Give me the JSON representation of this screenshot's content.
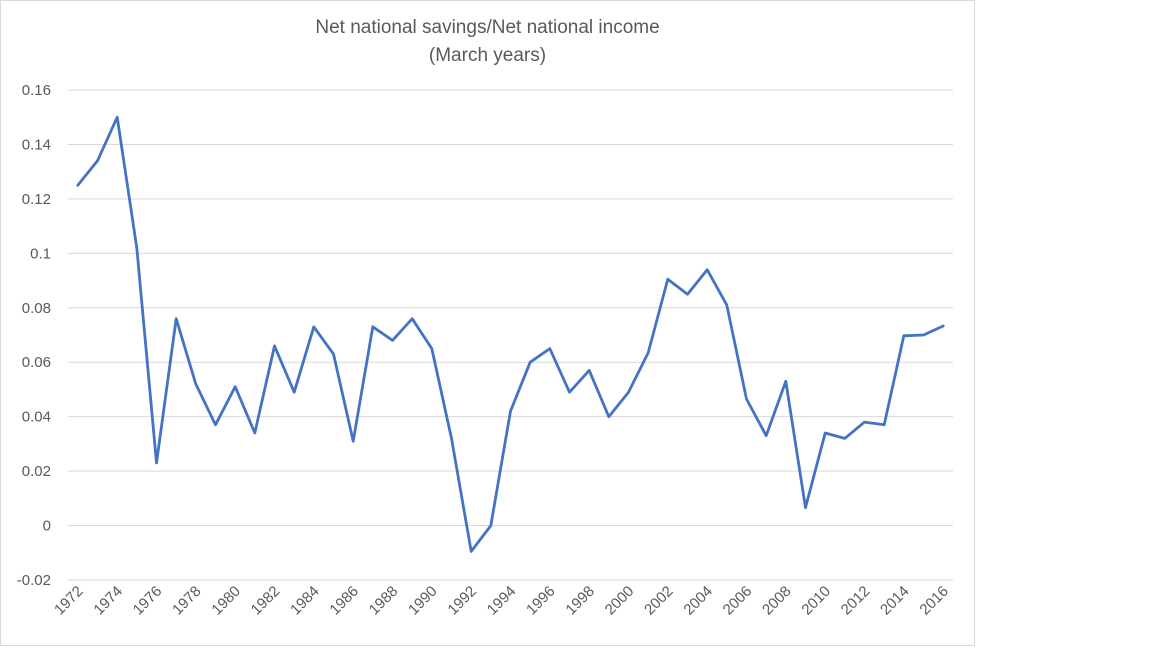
{
  "chart_data": {
    "type": "line",
    "title": "Net national savings/Net national income",
    "subtitle": "(March years)",
    "xlabel": "",
    "ylabel": "",
    "ylim": [
      -0.02,
      0.16
    ],
    "yticks": [
      "0.16",
      "0.14",
      "0.12",
      "0.1",
      "0.08",
      "0.06",
      "0.04",
      "0.02",
      "0",
      "-0.02"
    ],
    "xtick_labels": [
      "1972",
      "1974",
      "1976",
      "1978",
      "1980",
      "1982",
      "1984",
      "1986",
      "1988",
      "1990",
      "1992",
      "1994",
      "1996",
      "1998",
      "2000",
      "2002",
      "2004",
      "2006",
      "2008",
      "2010",
      "2012",
      "2014",
      "2016"
    ],
    "grid": true,
    "legend": null,
    "series": [
      {
        "name": "Net national savings/Net national income",
        "color": "#4472C4",
        "x": [
          1972,
          1973,
          1974,
          1975,
          1976,
          1977,
          1978,
          1979,
          1980,
          1981,
          1982,
          1983,
          1984,
          1985,
          1986,
          1987,
          1988,
          1989,
          1990,
          1991,
          1992,
          1993,
          1994,
          1995,
          1996,
          1997,
          1998,
          1999,
          2000,
          2001,
          2002,
          2003,
          2004,
          2005,
          2006,
          2007,
          2008,
          2009,
          2010,
          2011,
          2012,
          2013,
          2014,
          2015,
          2016
        ],
        "values": [
          0.125,
          0.134,
          0.15,
          0.102,
          0.023,
          0.076,
          0.052,
          0.037,
          0.051,
          0.034,
          0.066,
          0.049,
          0.073,
          0.063,
          0.031,
          0.073,
          0.068,
          0.076,
          0.065,
          0.032,
          -0.0095,
          0.0,
          0.042,
          0.06,
          0.065,
          0.049,
          0.057,
          0.04,
          0.049,
          0.0635,
          0.0905,
          0.085,
          0.094,
          0.081,
          0.0465,
          0.033,
          0.053,
          0.0066,
          0.034,
          0.032,
          0.038,
          0.037,
          0.0697,
          0.07,
          0.0733
        ]
      }
    ]
  }
}
